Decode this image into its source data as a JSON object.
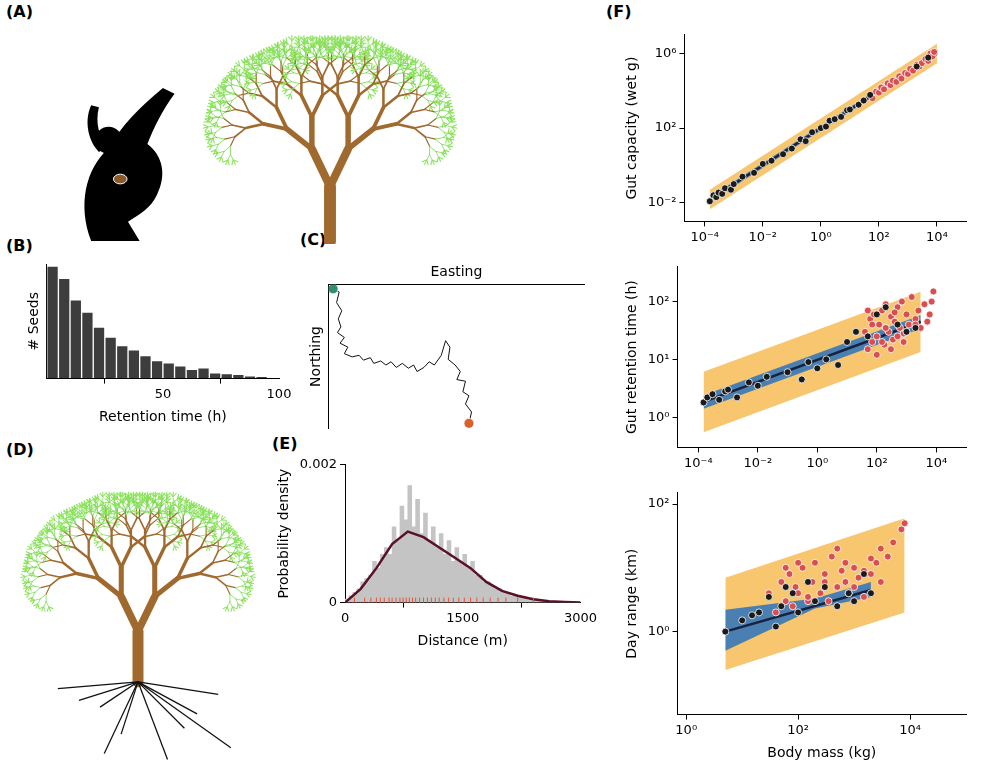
{
  "panel_labels": [
    "(A)",
    "(B)",
    "(C)",
    "(D)",
    "(E)",
    "(F)"
  ],
  "chart_data": [
    {
      "type": "histogram",
      "x_label": "Retention time (h)",
      "y_label": "# Seeds",
      "bins": [
        0,
        5,
        10,
        15,
        20,
        25,
        30,
        35,
        40,
        45,
        50,
        55,
        60,
        65,
        70,
        75,
        80,
        85,
        90,
        95
      ],
      "values": [
        157,
        140,
        110,
        93,
        72,
        58,
        46,
        40,
        32,
        25,
        22,
        18,
        13,
        15,
        8,
        7,
        6,
        4,
        3
      ],
      "color": "#3d3d3d",
      "xlim": [
        0,
        100
      ],
      "ylim": [
        0,
        160
      ],
      "xticks": [
        50,
        100
      ],
      "grid": false,
      "tick_labels": "x"
    },
    {
      "type": "line",
      "x_label": "Easting",
      "y_label": "Northing",
      "xlim": [
        -5,
        290
      ],
      "ylim": [
        -172,
        5
      ],
      "grid": false,
      "tick_labels": false,
      "series": [
        {
          "type": "line",
          "color": "#111111",
          "x": [
            0,
            7,
            4,
            10,
            6,
            9,
            5,
            13,
            8,
            17,
            13,
            22,
            30,
            35,
            43,
            47,
            55,
            61,
            67,
            73,
            80,
            87,
            93,
            97,
            105,
            111,
            117,
            125,
            130,
            135,
            133,
            141,
            147,
            143,
            153,
            150,
            157,
            153,
            160,
            157
          ],
          "values": [
            0,
            -4,
            -17,
            -27,
            -37,
            -47,
            -54,
            -60,
            -67,
            -72,
            -80,
            -84,
            -82,
            -88,
            -85,
            -92,
            -89,
            -94,
            -90,
            -97,
            -92,
            -98,
            -94,
            -102,
            -97,
            -90,
            -94,
            -82,
            -64,
            -72,
            -87,
            -94,
            -102,
            -112,
            -114,
            -127,
            -132,
            -142,
            -152,
            -166
          ]
        },
        {
          "type": "scatter",
          "marker": "circle",
          "color": "#2f8f6f",
          "x": [
            0
          ],
          "values": [
            0
          ]
        },
        {
          "type": "scatter",
          "marker": "circle",
          "color": "#d9622b",
          "x": [
            157
          ],
          "values": [
            -166
          ]
        }
      ]
    },
    {
      "type": "histogram",
      "x_label": "Distance (m)",
      "y_label": "Probability density",
      "xlim": [
        0,
        3000
      ],
      "ylim": [
        0,
        0.002
      ],
      "xticks": [
        0,
        1500,
        3000
      ],
      "yticks": [
        0,
        0.002
      ],
      "grid": false,
      "series": [
        {
          "type": "histogram",
          "color": "#c4c4c4",
          "bins": [
            0,
            50,
            100,
            150,
            200,
            250,
            300,
            350,
            400,
            450,
            500,
            550,
            600,
            650,
            700,
            750,
            800,
            850,
            900,
            950,
            1000,
            1050,
            1100,
            1150,
            1200,
            1250,
            1300,
            1350,
            1400,
            1450,
            1500,
            1550,
            1600,
            1650,
            1700,
            1750,
            1800,
            1850,
            1900,
            1950,
            2000,
            2050,
            2100,
            2150,
            2200,
            2250,
            2300,
            2350,
            2400,
            2450,
            2500,
            2550,
            2600,
            2650,
            2700,
            2750,
            2800,
            2850,
            2900,
            2950,
            3000
          ],
          "values": [
            5e-05,
            0.0001,
            0.00015,
            0.0002,
            0.0003,
            0.00035,
            0.0004,
            0.0006,
            0.0005,
            0.0007,
            0.0008,
            0.0007,
            0.0011,
            0.0009,
            0.0014,
            0.0012,
            0.0017,
            0.0011,
            0.0015,
            0.001,
            0.0013,
            0.0009,
            0.0011,
            0.0008,
            0.001,
            0.0007,
            0.0009,
            0.0006,
            0.0008,
            0.0006,
            0.0007,
            0.0005,
            0.0006,
            0.0004,
            0.0004,
            0.0003,
            0.0003,
            0.00025,
            0.0002,
            0.0002,
            0.00015,
            0.00015,
            0.0001,
            0.0001,
            0.0001,
            8e-05,
            6e-05,
            5e-05,
            5e-05,
            4e-05,
            3e-05,
            3e-05,
            2e-05,
            2e-05,
            1e-05,
            1e-05,
            1e-05,
            1e-05,
            5e-06,
            5e-06
          ]
        },
        {
          "type": "line",
          "color": "#5a1025",
          "x": [
            0,
            200,
            400,
            600,
            800,
            1000,
            1200,
            1400,
            1600,
            1800,
            2000,
            2200,
            2400,
            2600,
            2800,
            3000
          ],
          "values": [
            0,
            0.0002,
            0.0005,
            0.00085,
            0.00103,
            0.00095,
            0.0008,
            0.00065,
            0.0005,
            0.0003,
            0.00017,
            0.0001,
            5e-05,
            2e-05,
            1e-05,
            0
          ]
        },
        {
          "type": "scatter",
          "marker": "line",
          "color": "#e8533a",
          "x": [
            120,
            250,
            330,
            400,
            450,
            500,
            560,
            600,
            650,
            700,
            740,
            780,
            820,
            860,
            900,
            950,
            1000,
            1050,
            1100,
            1150,
            1200,
            1260,
            1320,
            1380,
            1450,
            1520,
            1600,
            1680,
            1760,
            1850,
            1950,
            2050,
            2200,
            2400
          ]
        }
      ]
    },
    {
      "type": "scatter",
      "y_label": "Gut capacity (wet g)",
      "log": true,
      "xlim": [
        2e-05,
        100000
      ],
      "ylim": [
        0.001,
        10000000
      ],
      "xticks": [
        {
          "value": 0.0001,
          "label": "10⁻⁴"
        },
        {
          "value": 0.01,
          "label": "10⁻²"
        },
        {
          "value": 1,
          "label": "10⁰"
        },
        {
          "value": 100,
          "label": "10²"
        },
        {
          "value": 10000,
          "label": "10⁴"
        }
      ],
      "yticks": [
        {
          "value": 0.01,
          "label": "10⁻²"
        },
        {
          "value": 100,
          "label": "10²"
        },
        {
          "value": 1000000,
          "label": "10⁶"
        }
      ],
      "grid": false,
      "series": [
        {
          "type": "area",
          "color": "#f7c66e",
          "x": [
            0.00015,
            10000
          ],
          "low": [
            0.0045,
            300000
          ],
          "high": [
            0.05,
            3300000
          ]
        },
        {
          "type": "area",
          "color": "#4a7fb2",
          "x": [
            0.00015,
            10000
          ],
          "low": [
            0.011,
            750000
          ],
          "high": [
            0.02,
            1330000
          ]
        },
        {
          "type": "line",
          "color": "#15233f",
          "x": [
            0.00015,
            10000
          ],
          "values": [
            0.015,
            1000000
          ]
        },
        {
          "type": "scatter",
          "marker": "circle",
          "color": "#1a1a1a",
          "x": [
            0.00015,
            0.0002,
            0.00025,
            0.0003,
            0.0004,
            0.0005,
            0.0008,
            0.001,
            0.002,
            0.005,
            0.01,
            0.02,
            0.05,
            0.1,
            0.2,
            0.3,
            0.5,
            1,
            1.5,
            2,
            3,
            5,
            8,
            10,
            20,
            30,
            50,
            2000,
            5000
          ],
          "values": [
            0.012,
            0.025,
            0.02,
            0.035,
            0.03,
            0.06,
            0.05,
            0.1,
            0.25,
            0.4,
            1.2,
            1.8,
            4,
            8,
            25,
            20,
            60,
            100,
            120,
            250,
            300,
            400,
            900,
            1000,
            1800,
            3000,
            6000,
            200000,
            600000
          ]
        },
        {
          "type": "scatter",
          "marker": "circle",
          "color": "#d94f4f",
          "x": [
            60,
            80,
            100,
            120,
            150,
            200,
            250,
            300,
            400,
            500,
            600,
            800,
            1000,
            1200,
            1500,
            2000,
            2500,
            3000,
            4000,
            5000,
            6000,
            7000,
            8000
          ],
          "values": [
            4000,
            9000,
            8000,
            15000,
            12000,
            25000,
            20000,
            35000,
            30000,
            60000,
            45000,
            90000,
            80000,
            150000,
            120000,
            250000,
            200000,
            300000,
            500000,
            400000,
            1000000,
            700000,
            1200000
          ]
        }
      ]
    },
    {
      "type": "scatter",
      "y_label": "Gut retention time (h)",
      "log": true,
      "xlim": [
        2e-05,
        100000
      ],
      "ylim": [
        0.3,
        400
      ],
      "xticks": [
        {
          "value": 0.0001,
          "label": "10⁻⁴"
        },
        {
          "value": 0.01,
          "label": "10⁻²"
        },
        {
          "value": 1,
          "label": "10⁰"
        },
        {
          "value": 100,
          "label": "10²"
        },
        {
          "value": 10000,
          "label": "10⁴"
        }
      ],
      "yticks": [
        {
          "value": 1,
          "label": "10⁰"
        },
        {
          "value": 10,
          "label": "10¹"
        },
        {
          "value": 100,
          "label": "10²"
        }
      ],
      "grid": false,
      "series": [
        {
          "type": "area",
          "color": "#f7c66e",
          "x": [
            0.00015,
            3000
          ],
          "low": [
            0.55,
            13.4
          ],
          "high": [
            6.1,
            148
          ]
        },
        {
          "type": "area",
          "color": "#4a7fb2",
          "x": [
            0.00015,
            3000
          ],
          "low": [
            1.4,
            34
          ],
          "high": [
            2.4,
            58
          ]
        },
        {
          "type": "line",
          "color": "#15233f",
          "x": [
            0.00015,
            3000
          ],
          "values": [
            1.84,
            44.8
          ]
        },
        {
          "type": "scatter",
          "marker": "circle",
          "color": "#1a1a1a",
          "x": [
            0.00015,
            0.0002,
            0.0003,
            0.0005,
            0.0008,
            0.001,
            0.002,
            0.005,
            0.01,
            0.02,
            0.1,
            0.3,
            0.5,
            1,
            2,
            5,
            10,
            20,
            50,
            100,
            200,
            500,
            1000,
            2000
          ],
          "values": [
            1.8,
            2.2,
            2.5,
            2,
            2.8,
            3,
            2.2,
            4,
            3.5,
            5,
            6,
            4.5,
            9,
            7,
            10,
            8,
            20,
            30,
            25,
            60,
            80,
            40,
            30,
            35
          ]
        },
        {
          "type": "scatter",
          "marker": "circle",
          "color": "#d94f4f",
          "x": [
            40,
            50,
            60,
            70,
            80,
            100,
            120,
            150,
            180,
            200,
            250,
            300,
            350,
            400,
            500,
            600,
            700,
            800,
            1000,
            1200,
            1500,
            2000,
            2500,
            3000,
            4000,
            5000,
            6000,
            7000,
            8000,
            100,
            150,
            200,
            300,
            500,
            800,
            1000,
            2000,
            50,
            70,
            400
          ],
          "values": [
            30,
            15,
            50,
            20,
            60,
            25,
            40,
            70,
            18,
            90,
            30,
            55,
            22,
            45,
            80,
            35,
            100,
            28,
            60,
            40,
            120,
            50,
            70,
            35,
            90,
            45,
            60,
            100,
            150,
            12,
            20,
            35,
            15,
            25,
            20,
            30,
            40,
            70,
            40,
            65
          ]
        }
      ]
    },
    {
      "type": "scatter",
      "x_label": "Body mass (kg)",
      "y_label": "Day range (km)",
      "log": true,
      "xlim": [
        0.7,
        100000
      ],
      "ylim": [
        0.05,
        150
      ],
      "xticks": [
        {
          "value": 1,
          "label": "10⁰"
        },
        {
          "value": 100,
          "label": "10²"
        },
        {
          "value": 10000,
          "label": "10⁴"
        }
      ],
      "yticks": [
        {
          "value": 1,
          "label": "10⁰"
        },
        {
          "value": 100,
          "label": "10²"
        }
      ],
      "grid": false,
      "series": [
        {
          "type": "area",
          "color": "#f7c66e",
          "x": [
            5,
            8000
          ],
          "low": [
            0.25,
            2
          ],
          "high": [
            7,
            60
          ]
        },
        {
          "type": "area",
          "color": "#4a7fb2",
          "x": [
            5,
            200,
            2000
          ],
          "low": [
            0.5,
            2.3,
            3.5
          ],
          "high": [
            2.2,
            3.3,
            6
          ]
        },
        {
          "type": "line",
          "color": "#15233f",
          "x": [
            5,
            2000
          ],
          "values": [
            1,
            4.5
          ]
        },
        {
          "type": "scatter",
          "marker": "circle",
          "color": "#1a1a1a",
          "x": [
            5,
            10,
            15,
            20,
            30,
            40,
            50,
            60,
            80,
            100,
            150,
            200,
            300,
            500,
            800,
            1000,
            1500,
            2000
          ],
          "values": [
            1,
            1.5,
            1.8,
            2,
            3.5,
            1.2,
            2.5,
            5,
            4,
            2,
            6,
            3,
            5,
            2.5,
            4,
            3,
            8,
            4
          ]
        },
        {
          "type": "scatter",
          "marker": "circle",
          "color": "#d94f4f",
          "x": [
            30,
            40,
            50,
            60,
            70,
            80,
            90,
            100,
            120,
            150,
            180,
            200,
            250,
            300,
            350,
            400,
            500,
            600,
            700,
            800,
            1000,
            1200,
            1500,
            2000,
            2500,
            3000,
            4000,
            5000,
            7000,
            8000,
            60,
            100,
            150,
            300,
            500,
            700,
            1000,
            1500,
            2000,
            3000
          ],
          "values": [
            4,
            2,
            6,
            3,
            8,
            2.5,
            5,
            4,
            10,
            3,
            6,
            12,
            4,
            8,
            3,
            15,
            5,
            9,
            6,
            4,
            10,
            7,
            3.5,
            8,
            12,
            20,
            15,
            25,
            40,
            50,
            10,
            12,
            3.5,
            6,
            20,
            12,
            5,
            9,
            14,
            6
          ]
        }
      ]
    }
  ]
}
